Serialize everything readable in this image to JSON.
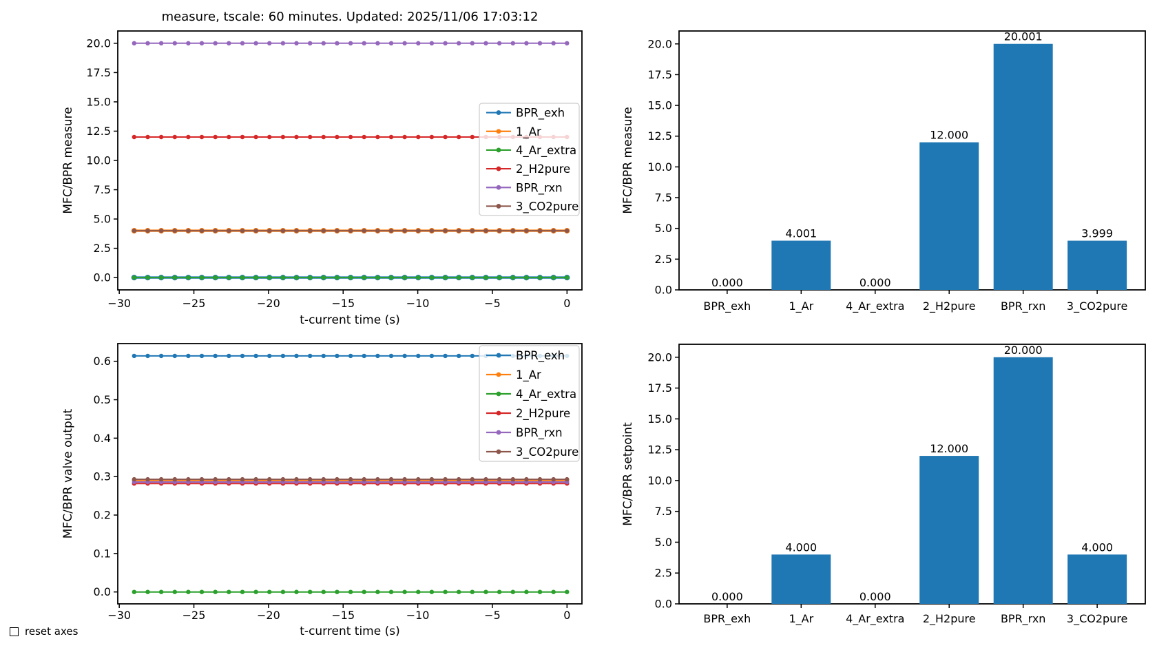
{
  "figure": {
    "title": "measure, tscale: 60 minutes. Updated: 2025/11/06 17:03:12",
    "background": "#ffffff"
  },
  "controls": {
    "reset_axes_label": "reset axes",
    "checked": false
  },
  "categories": [
    "BPR_exh",
    "1_Ar",
    "4_Ar_extra",
    "2_H2pure",
    "BPR_rxn",
    "3_CO2pure"
  ],
  "series_colors": [
    "#1f77b4",
    "#ff7f0e",
    "#2ca02c",
    "#d62728",
    "#9467bd",
    "#8c564b"
  ],
  "bar_color": "#1f77b4",
  "chart_data": [
    {
      "id": "measure-lines",
      "type": "line",
      "position": "top-left",
      "title": "measure, tscale: 60 minutes. Updated: 2025/11/06 17:03:12",
      "xlabel": "t-current time (s)",
      "ylabel": "MFC/BPR measure",
      "xlim": [
        -30.1,
        1.0
      ],
      "ylim": [
        -1.05,
        21.05
      ],
      "xticks": [
        -30,
        -25,
        -20,
        -15,
        -10,
        -5,
        0
      ],
      "yticks": [
        0.0,
        2.5,
        5.0,
        7.5,
        10.0,
        12.5,
        15.0,
        17.5,
        20.0
      ],
      "x_start": -29,
      "x_end": 0,
      "n_points": 33,
      "grid": false,
      "legend_position": "center-right",
      "series": [
        {
          "name": "BPR_exh",
          "color": "#1f77b4",
          "value": 0.0
        },
        {
          "name": "1_Ar",
          "color": "#ff7f0e",
          "value": 4.001
        },
        {
          "name": "4_Ar_extra",
          "color": "#2ca02c",
          "value": 0.0
        },
        {
          "name": "2_H2pure",
          "color": "#d62728",
          "value": 12.0
        },
        {
          "name": "BPR_rxn",
          "color": "#9467bd",
          "value": 20.001
        },
        {
          "name": "3_CO2pure",
          "color": "#8c564b",
          "value": 3.999
        }
      ]
    },
    {
      "id": "measure-bars",
      "type": "bar",
      "position": "top-right",
      "xlabel": "",
      "ylabel": "MFC/BPR measure",
      "ylim": [
        0,
        21.05
      ],
      "yticks": [
        0.0,
        2.5,
        5.0,
        7.5,
        10.0,
        12.5,
        15.0,
        17.5,
        20.0
      ],
      "categories": [
        "BPR_exh",
        "1_Ar",
        "4_Ar_extra",
        "2_H2pure",
        "BPR_rxn",
        "3_CO2pure"
      ],
      "values": [
        0.0,
        4.001,
        0.0,
        12.0,
        20.001,
        3.999
      ],
      "bar_labels": [
        "0.000",
        "4.001",
        "0.000",
        "12.000",
        "20.001",
        "3.999"
      ],
      "bar_color": "#1f77b4",
      "grid": false
    },
    {
      "id": "valve-lines",
      "type": "line",
      "position": "bottom-left",
      "xlabel": "t-current time (s)",
      "ylabel": "MFC/BPR valve output",
      "xlim": [
        -30.1,
        1.0
      ],
      "ylim": [
        -0.031,
        0.646
      ],
      "xticks": [
        -30,
        -25,
        -20,
        -15,
        -10,
        -5,
        0
      ],
      "yticks": [
        0.0,
        0.1,
        0.2,
        0.3,
        0.4,
        0.5,
        0.6
      ],
      "x_start": -29,
      "x_end": 0,
      "n_points": 33,
      "grid": false,
      "legend_position": "top-right",
      "series": [
        {
          "name": "BPR_exh",
          "color": "#1f77b4",
          "value": 0.614
        },
        {
          "name": "1_Ar",
          "color": "#ff7f0e",
          "value": 0.29
        },
        {
          "name": "4_Ar_extra",
          "color": "#2ca02c",
          "value": 0.0
        },
        {
          "name": "2_H2pure",
          "color": "#d62728",
          "value": 0.282
        },
        {
          "name": "BPR_rxn",
          "color": "#9467bd",
          "value": 0.286
        },
        {
          "name": "3_CO2pure",
          "color": "#8c564b",
          "value": 0.293
        }
      ]
    },
    {
      "id": "setpoint-bars",
      "type": "bar",
      "position": "bottom-right",
      "xlabel": "",
      "ylabel": "MFC/BPR setpoint",
      "ylim": [
        0,
        21.05
      ],
      "yticks": [
        0.0,
        2.5,
        5.0,
        7.5,
        10.0,
        12.5,
        15.0,
        17.5,
        20.0
      ],
      "categories": [
        "BPR_exh",
        "1_Ar",
        "4_Ar_extra",
        "2_H2pure",
        "BPR_rxn",
        "3_CO2pure"
      ],
      "values": [
        0.0,
        4.0,
        0.0,
        12.0,
        20.0,
        4.0
      ],
      "bar_labels": [
        "0.000",
        "4.000",
        "0.000",
        "12.000",
        "20.000",
        "4.000"
      ],
      "bar_color": "#1f77b4",
      "grid": false
    }
  ]
}
